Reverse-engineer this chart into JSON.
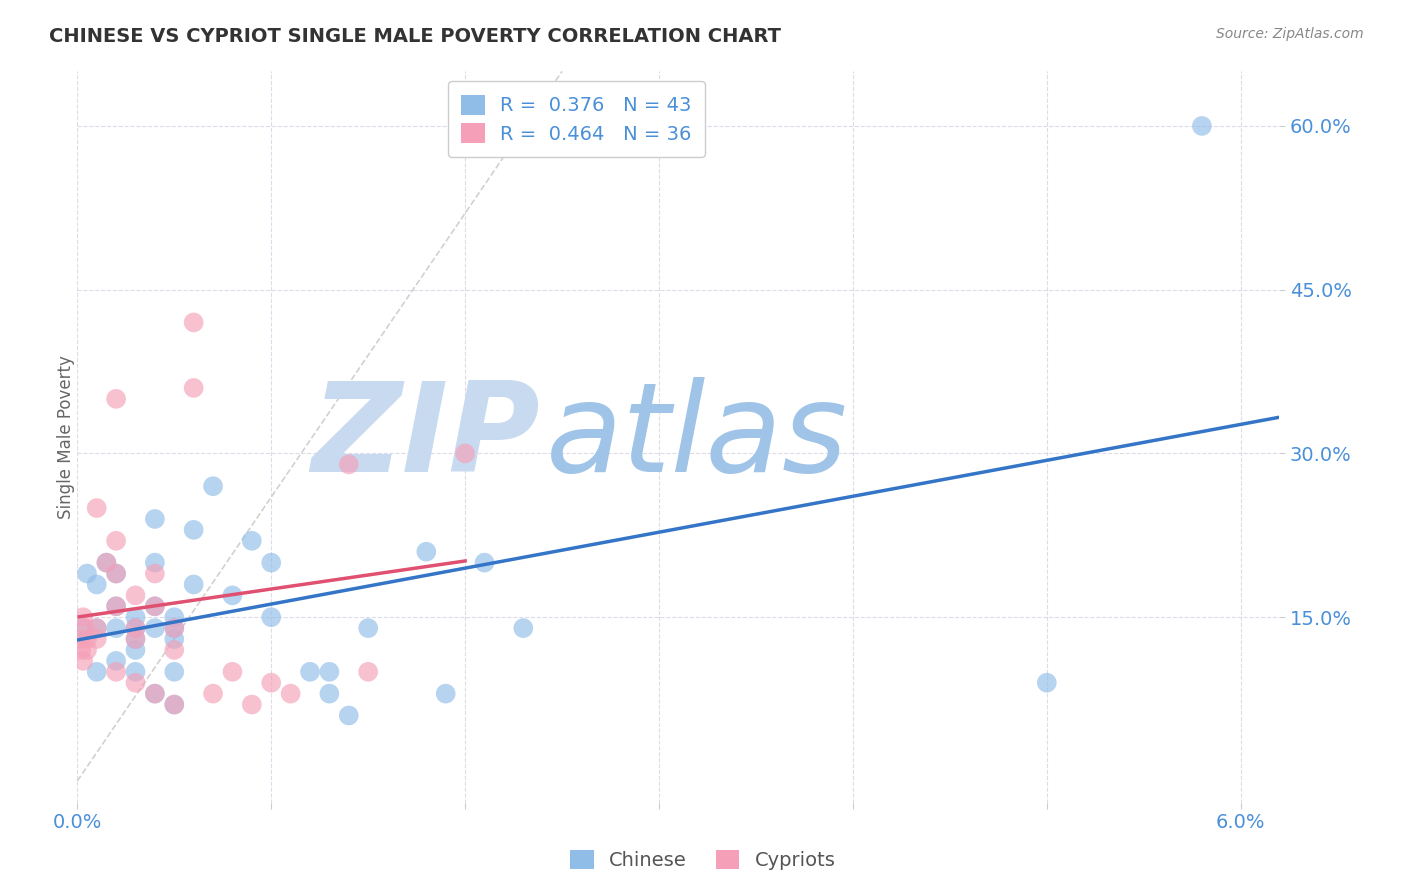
{
  "title": "CHINESE VS CYPRIOT SINGLE MALE POVERTY CORRELATION CHART",
  "source": "Source: ZipAtlas.com",
  "tick_color": "#4a90d9",
  "ylabel": "Single Male Poverty",
  "xlim": [
    0.0,
    0.062
  ],
  "ylim": [
    -0.02,
    0.65
  ],
  "xticks": [
    0.0,
    0.01,
    0.02,
    0.03,
    0.04,
    0.05,
    0.06
  ],
  "yticks": [
    0.15,
    0.3,
    0.45,
    0.6
  ],
  "ytick_labels": [
    "15.0%",
    "30.0%",
    "45.0%",
    "60.0%"
  ],
  "xtick_labels": [
    "0.0%",
    "",
    "",
    "",
    "",
    "",
    "6.0%"
  ],
  "chinese_color": "#90bce8",
  "cypriot_color": "#f5a0b8",
  "chinese_line_color": "#3575c8",
  "cypriot_line_color": "#e05070",
  "diagonal_color": "#cccccc",
  "diagonal_dash": [
    4,
    4
  ],
  "R_chinese": 0.376,
  "N_chinese": 43,
  "R_cypriot": 0.464,
  "N_cypriot": 36,
  "legend_text_color": "#4a90d9",
  "legend_label_color": "#333333",
  "chinese_x": [
    0.0003,
    0.0005,
    0.001,
    0.001,
    0.001,
    0.0015,
    0.002,
    0.002,
    0.002,
    0.002,
    0.003,
    0.003,
    0.003,
    0.003,
    0.003,
    0.004,
    0.004,
    0.004,
    0.004,
    0.004,
    0.005,
    0.005,
    0.005,
    0.005,
    0.005,
    0.006,
    0.006,
    0.007,
    0.008,
    0.009,
    0.01,
    0.01,
    0.012,
    0.013,
    0.013,
    0.014,
    0.015,
    0.018,
    0.019,
    0.021,
    0.023,
    0.05,
    0.058
  ],
  "chinese_y": [
    0.14,
    0.19,
    0.18,
    0.14,
    0.1,
    0.2,
    0.19,
    0.16,
    0.14,
    0.11,
    0.15,
    0.14,
    0.13,
    0.12,
    0.1,
    0.24,
    0.2,
    0.16,
    0.14,
    0.08,
    0.15,
    0.14,
    0.13,
    0.1,
    0.07,
    0.23,
    0.18,
    0.27,
    0.17,
    0.22,
    0.15,
    0.2,
    0.1,
    0.1,
    0.08,
    0.06,
    0.14,
    0.21,
    0.08,
    0.2,
    0.14,
    0.09,
    0.6
  ],
  "cypriot_x": [
    0.0001,
    0.0002,
    0.0003,
    0.0003,
    0.0004,
    0.0005,
    0.0005,
    0.001,
    0.001,
    0.001,
    0.0015,
    0.002,
    0.002,
    0.002,
    0.002,
    0.002,
    0.003,
    0.003,
    0.003,
    0.003,
    0.004,
    0.004,
    0.004,
    0.005,
    0.005,
    0.005,
    0.006,
    0.006,
    0.007,
    0.008,
    0.009,
    0.01,
    0.011,
    0.014,
    0.015,
    0.02
  ],
  "cypriot_y": [
    0.13,
    0.12,
    0.15,
    0.11,
    0.14,
    0.13,
    0.12,
    0.25,
    0.14,
    0.13,
    0.2,
    0.35,
    0.22,
    0.19,
    0.16,
    0.1,
    0.17,
    0.14,
    0.13,
    0.09,
    0.19,
    0.16,
    0.08,
    0.14,
    0.12,
    0.07,
    0.42,
    0.36,
    0.08,
    0.1,
    0.07,
    0.09,
    0.08,
    0.29,
    0.1,
    0.3
  ],
  "background_color": "#ffffff",
  "grid_color": "#d8d8e8",
  "watermark_zip": "ZIP",
  "watermark_atlas": "atlas",
  "watermark_zip_color": "#c8daf0",
  "watermark_atlas_color": "#a0c4e8"
}
